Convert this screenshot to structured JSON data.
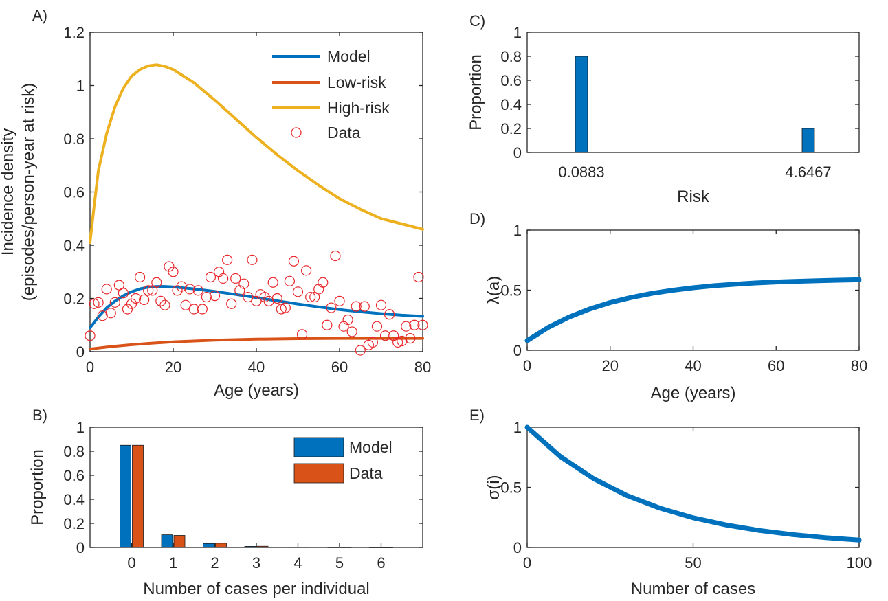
{
  "chart_data": [
    {
      "panel": "A)",
      "type": "line",
      "xlabel": "Age (years)",
      "ylabel": "Incidence density\n(episodes/person-year at risk)",
      "xlim": [
        0,
        80
      ],
      "ylim": [
        0,
        1.2
      ],
      "xticks": [
        "0",
        "20",
        "40",
        "60",
        "80"
      ],
      "yticks": [
        "0",
        "0.2",
        "0.4",
        "0.6",
        "0.8",
        "1",
        "1.2"
      ],
      "legend_position": "top-right",
      "colors": {
        "model": "#0072BD",
        "low": "#D95319",
        "high": "#EDB120",
        "data": "#E8262B"
      },
      "series": [
        {
          "name": "Model",
          "kind": "line",
          "x": [
            0,
            2,
            4,
            6,
            8,
            10,
            12,
            14,
            16,
            18,
            20,
            25,
            30,
            35,
            40,
            45,
            50,
            55,
            60,
            65,
            70,
            75,
            80
          ],
          "y": [
            0.09,
            0.13,
            0.165,
            0.19,
            0.21,
            0.225,
            0.236,
            0.242,
            0.245,
            0.245,
            0.243,
            0.236,
            0.226,
            0.215,
            0.203,
            0.191,
            0.179,
            0.168,
            0.158,
            0.15,
            0.143,
            0.137,
            0.133
          ]
        },
        {
          "name": "Low-risk",
          "kind": "line",
          "x": [
            0,
            5,
            10,
            15,
            20,
            25,
            30,
            40,
            50,
            60,
            70,
            80
          ],
          "y": [
            0.01,
            0.019,
            0.026,
            0.032,
            0.037,
            0.04,
            0.043,
            0.047,
            0.049,
            0.05,
            0.05,
            0.05
          ]
        },
        {
          "name": "High-risk",
          "kind": "line",
          "x": [
            0,
            1,
            2,
            4,
            6,
            8,
            10,
            12,
            14,
            16,
            18,
            20,
            25,
            30,
            35,
            40,
            45,
            50,
            55,
            60,
            65,
            70,
            75,
            80
          ],
          "y": [
            0.41,
            0.55,
            0.68,
            0.82,
            0.92,
            0.99,
            1.035,
            1.06,
            1.074,
            1.078,
            1.072,
            1.06,
            1.01,
            0.945,
            0.875,
            0.805,
            0.74,
            0.68,
            0.625,
            0.575,
            0.535,
            0.5,
            0.48,
            0.46
          ]
        },
        {
          "name": "Data",
          "kind": "scatter",
          "x": [
            0,
            1,
            2,
            3,
            4,
            5,
            6,
            7,
            8,
            9,
            10,
            11,
            12,
            13,
            14,
            15,
            16,
            17,
            18,
            19,
            20,
            21,
            22,
            23,
            24,
            25,
            26,
            27,
            28,
            29,
            30,
            31,
            32,
            33,
            34,
            35,
            36,
            37,
            38,
            39,
            40,
            41,
            42,
            43,
            44,
            45,
            46,
            47,
            48,
            49,
            50,
            51,
            52,
            53,
            54,
            55,
            56,
            57,
            58,
            59,
            60,
            61,
            62,
            63,
            64,
            65,
            66,
            67,
            68,
            69,
            70,
            71,
            72,
            73,
            74,
            75,
            76,
            77,
            78,
            79,
            80
          ],
          "y": [
            0.06,
            0.18,
            0.185,
            0.135,
            0.235,
            0.145,
            0.185,
            0.25,
            0.22,
            0.16,
            0.18,
            0.2,
            0.28,
            0.195,
            0.23,
            0.23,
            0.26,
            0.19,
            0.175,
            0.32,
            0.3,
            0.23,
            0.245,
            0.175,
            0.235,
            0.16,
            0.23,
            0.16,
            0.205,
            0.28,
            0.21,
            0.3,
            0.275,
            0.345,
            0.18,
            0.275,
            0.23,
            0.255,
            0.205,
            0.345,
            0.19,
            0.215,
            0.205,
            0.19,
            0.26,
            0.2,
            0.16,
            0.165,
            0.265,
            0.34,
            0.225,
            0.065,
            0.305,
            0.205,
            0.205,
            0.235,
            0.26,
            0.1,
            0.165,
            0.36,
            0.19,
            0.095,
            0.12,
            0.075,
            0.17,
            0.005,
            0.17,
            0.025,
            0.035,
            0.095,
            0.175,
            0.06,
            0.14,
            0.06,
            0.035,
            0.04,
            0.095,
            0.05,
            0.1,
            0.28,
            0.1
          ]
        }
      ]
    },
    {
      "panel": "B)",
      "type": "bar",
      "xlabel": "Number of cases per individual",
      "ylabel": "Proportion",
      "ylim": [
        0,
        1
      ],
      "yticks": [
        "0",
        "0.2",
        "0.4",
        "0.6",
        "0.8",
        "1"
      ],
      "categories": [
        "0",
        "1",
        "2",
        "3",
        "4",
        "5",
        "6"
      ],
      "legend_position": "top-right",
      "series": [
        {
          "name": "Model",
          "color": "#0072BD",
          "values": [
            0.85,
            0.105,
            0.033,
            0.009,
            0.003,
            0.001,
            0.0005
          ]
        },
        {
          "name": "Data",
          "color": "#D95319",
          "values": [
            0.85,
            0.1,
            0.035,
            0.01,
            0.003,
            0.001,
            0.0003
          ]
        }
      ]
    },
    {
      "panel": "C)",
      "type": "bar",
      "xlabel": "Risk",
      "ylabel": "Proportion",
      "ylim": [
        0,
        1
      ],
      "yticks": [
        "0",
        "0.2",
        "0.4",
        "0.6",
        "0.8",
        "1"
      ],
      "categories": [
        "0.0883",
        "4.6467"
      ],
      "values": [
        0.8,
        0.2
      ],
      "color": "#0072BD"
    },
    {
      "panel": "D)",
      "type": "line",
      "xlabel": "Age (years)",
      "ylabel": "λ(a)",
      "xlim": [
        0,
        80
      ],
      "ylim": [
        0,
        1
      ],
      "xticks": [
        "0",
        "20",
        "40",
        "60",
        "80"
      ],
      "yticks": [
        "0",
        "0.5",
        "1"
      ],
      "color": "#0072BD",
      "x": [
        0,
        5,
        10,
        15,
        20,
        25,
        30,
        35,
        40,
        45,
        50,
        55,
        60,
        65,
        70,
        75,
        80
      ],
      "y": [
        0.08,
        0.189,
        0.275,
        0.343,
        0.397,
        0.439,
        0.473,
        0.499,
        0.52,
        0.537,
        0.549,
        0.56,
        0.568,
        0.574,
        0.579,
        0.583,
        0.586
      ]
    },
    {
      "panel": "E)",
      "type": "line",
      "xlabel": "Number of cases",
      "ylabel": "σ(i)",
      "xlim": [
        0,
        100
      ],
      "ylim": [
        0,
        1
      ],
      "xticks": [
        "0",
        "50",
        "100"
      ],
      "yticks": [
        "0",
        "0.5",
        "1"
      ],
      "color": "#0072BD",
      "x": [
        0,
        10,
        20,
        30,
        40,
        50,
        60,
        70,
        80,
        90,
        100
      ],
      "y": [
        1,
        0.756,
        0.572,
        0.432,
        0.327,
        0.247,
        0.187,
        0.141,
        0.107,
        0.081,
        0.061
      ]
    }
  ]
}
